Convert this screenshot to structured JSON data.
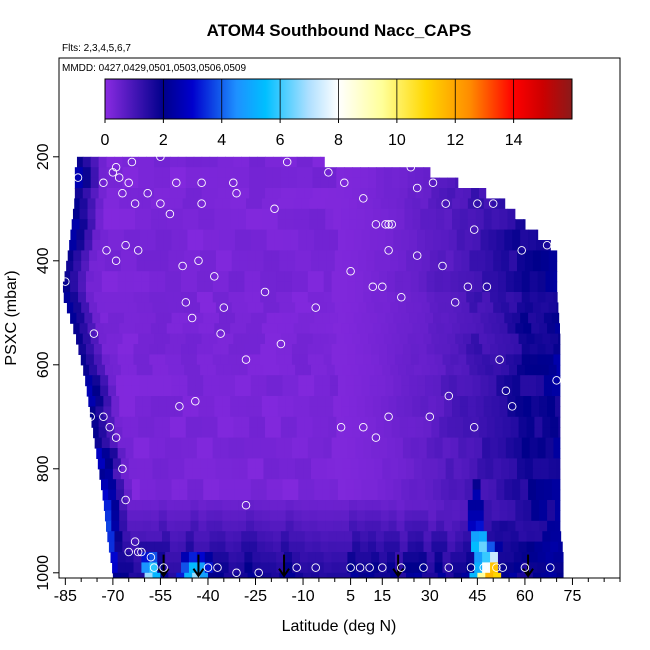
{
  "chart_data": {
    "type": "heatmap",
    "title": "ATOM4 Southbound Nacc_CAPS",
    "subtitle_flights": "Flts: 2,3,4,5,6,7",
    "subtitle_dates": "MMDD: 0427,0429,0501,0503,0506,0509",
    "xlabel": "Latitude (deg N)",
    "ylabel": "PSXC (mbar)",
    "xlim": [
      -87,
      90
    ],
    "ylim": [
      1010,
      10
    ],
    "x_ticks": [
      -85,
      -70,
      -55,
      -40,
      -25,
      -10,
      5,
      15,
      30,
      45,
      60,
      75
    ],
    "x_tick_labels": [
      "-85",
      "-70",
      "-55",
      "-40",
      "-25",
      "-10",
      "5",
      "15",
      "30",
      "45",
      "60",
      "75"
    ],
    "x_minor_step": 5,
    "y_ticks": [
      200,
      400,
      600,
      800,
      1000
    ],
    "y_tick_labels": [
      "200",
      "400",
      "600",
      "800",
      "1000"
    ],
    "colorbar": {
      "min": 0,
      "max": 16,
      "ticks": [
        0,
        2,
        4,
        6,
        8,
        10,
        12,
        14
      ],
      "tick_labels": [
        "0",
        "2",
        "4",
        "6",
        "8",
        "10",
        "12",
        "14"
      ],
      "color_stops": [
        {
          "v": 0,
          "color": "#8A2BE2"
        },
        {
          "v": 2,
          "color": "#00008B"
        },
        {
          "v": 3,
          "color": "#0000CD"
        },
        {
          "v": 4.5,
          "color": "#1E90FF"
        },
        {
          "v": 5.5,
          "color": "#00BFFF"
        },
        {
          "v": 7,
          "color": "#B0E0FF"
        },
        {
          "v": 8,
          "color": "#FFFFFF"
        },
        {
          "v": 9.5,
          "color": "#FFFF99"
        },
        {
          "v": 11,
          "color": "#FFD700"
        },
        {
          "v": 12.5,
          "color": "#FF8C00"
        },
        {
          "v": 14,
          "color": "#FF0000"
        },
        {
          "v": 15,
          "color": "#CC0000"
        },
        {
          "v": 16,
          "color": "#8B1A1A"
        }
      ]
    },
    "field_bounds": [
      {
        "p": 200,
        "lat_min": -81,
        "lat_max": -20
      },
      {
        "p": 230,
        "lat_min": -82,
        "lat_max": 30
      },
      {
        "p": 280,
        "lat_min": -82,
        "lat_max": 52
      },
      {
        "p": 330,
        "lat_min": -83,
        "lat_max": 60
      },
      {
        "p": 380,
        "lat_min": -84,
        "lat_max": 70
      },
      {
        "p": 460,
        "lat_min": -86,
        "lat_max": 70
      },
      {
        "p": 540,
        "lat_min": -82,
        "lat_max": 71
      },
      {
        "p": 620,
        "lat_min": -79,
        "lat_max": 71
      },
      {
        "p": 700,
        "lat_min": -77,
        "lat_max": 71
      },
      {
        "p": 780,
        "lat_min": -75,
        "lat_max": 71
      },
      {
        "p": 860,
        "lat_min": -73,
        "lat_max": 71
      },
      {
        "p": 920,
        "lat_min": -72,
        "lat_max": 71
      },
      {
        "p": 960,
        "lat_min": -71,
        "lat_max": 72
      },
      {
        "p": 1000,
        "lat_min": -70,
        "lat_max": 72
      }
    ],
    "boundary_layer_features": [
      {
        "lat": -72,
        "width": 3,
        "p_top": 760,
        "p_bottom": 1000,
        "peak": 5.5
      },
      {
        "lat": -58,
        "width": 3,
        "p_top": 950,
        "p_bottom": 1000,
        "peak": 8.0
      },
      {
        "lat": -44,
        "width": 5,
        "p_top": 955,
        "p_bottom": 1000,
        "peak": 7.0
      },
      {
        "lat": 44.5,
        "width": 1.5,
        "p_top": 820,
        "p_bottom": 1000,
        "peak": 7.5
      },
      {
        "lat": 46.5,
        "width": 1.5,
        "p_top": 880,
        "p_bottom": 1000,
        "peak": 10.5
      },
      {
        "lat": 48.5,
        "width": 1.5,
        "p_top": 930,
        "p_bottom": 1000,
        "peak": 13.0
      },
      {
        "lat": 50.5,
        "width": 2,
        "p_top": 945,
        "p_bottom": 1000,
        "peak": 14.5
      }
    ],
    "profile_markers_lat": [
      -54,
      -43,
      -16,
      20,
      61
    ],
    "observations": [
      [
        -85,
        440
      ],
      [
        -81,
        240
      ],
      [
        -76,
        540
      ],
      [
        -73,
        250
      ],
      [
        -72,
        380
      ],
      [
        -70,
        230
      ],
      [
        -69,
        400
      ],
      [
        -69,
        220
      ],
      [
        -68,
        240
      ],
      [
        -67,
        270
      ],
      [
        -66,
        370
      ],
      [
        -65,
        250
      ],
      [
        -64,
        210
      ],
      [
        -63,
        290
      ],
      [
        -62,
        380
      ],
      [
        -59,
        270
      ],
      [
        -55,
        290
      ],
      [
        -55,
        200
      ],
      [
        -52,
        310
      ],
      [
        -50,
        250
      ],
      [
        -48,
        410
      ],
      [
        -47,
        480
      ],
      [
        -45,
        510
      ],
      [
        -43,
        400
      ],
      [
        -42,
        290
      ],
      [
        -42,
        250
      ],
      [
        -38,
        430
      ],
      [
        -36,
        540
      ],
      [
        -35,
        490
      ],
      [
        -32,
        250
      ],
      [
        -31,
        270
      ],
      [
        -28,
        590
      ],
      [
        -22,
        460
      ],
      [
        -19,
        300
      ],
      [
        -17,
        560
      ],
      [
        -15,
        210
      ],
      [
        -6,
        490
      ],
      [
        -2,
        230
      ],
      [
        3,
        250
      ],
      [
        5,
        420
      ],
      [
        9,
        280
      ],
      [
        12,
        450
      ],
      [
        13,
        330
      ],
      [
        15,
        450
      ],
      [
        16,
        330
      ],
      [
        17,
        330
      ],
      [
        17,
        380
      ],
      [
        18,
        330
      ],
      [
        21,
        470
      ],
      [
        24,
        220
      ],
      [
        26,
        390
      ],
      [
        26,
        260
      ],
      [
        31,
        250
      ],
      [
        34,
        410
      ],
      [
        35,
        290
      ],
      [
        36,
        660
      ],
      [
        38,
        480
      ],
      [
        42,
        450
      ],
      [
        44,
        340
      ],
      [
        45,
        290
      ],
      [
        48,
        450
      ],
      [
        50,
        290
      ],
      [
        52,
        590
      ],
      [
        54,
        650
      ],
      [
        56,
        680
      ],
      [
        59,
        380
      ],
      [
        67,
        370
      ],
      [
        70,
        630
      ],
      [
        -77,
        700
      ],
      [
        -73,
        700
      ],
      [
        -71,
        720
      ],
      [
        -69,
        740
      ],
      [
        -67,
        800
      ],
      [
        -66,
        860
      ],
      [
        -65,
        960
      ],
      [
        -63,
        940
      ],
      [
        -62,
        960
      ],
      [
        -61,
        960
      ],
      [
        -58,
        970
      ],
      [
        -57,
        990
      ],
      [
        -54,
        990
      ],
      [
        -49,
        680
      ],
      [
        -44,
        670
      ],
      [
        -40,
        990
      ],
      [
        -37,
        990
      ],
      [
        -31,
        1000
      ],
      [
        -28,
        870
      ],
      [
        -24,
        1000
      ],
      [
        -12,
        990
      ],
      [
        -6,
        990
      ],
      [
        2,
        720
      ],
      [
        5,
        990
      ],
      [
        8,
        990
      ],
      [
        9,
        720
      ],
      [
        11,
        990
      ],
      [
        13,
        740
      ],
      [
        15,
        990
      ],
      [
        17,
        700
      ],
      [
        21,
        990
      ],
      [
        28,
        990
      ],
      [
        30,
        700
      ],
      [
        36,
        990
      ],
      [
        43,
        990
      ],
      [
        44,
        720
      ],
      [
        47,
        990
      ],
      [
        51,
        990
      ],
      [
        53,
        990
      ],
      [
        60,
        990
      ],
      [
        68,
        990
      ]
    ]
  }
}
